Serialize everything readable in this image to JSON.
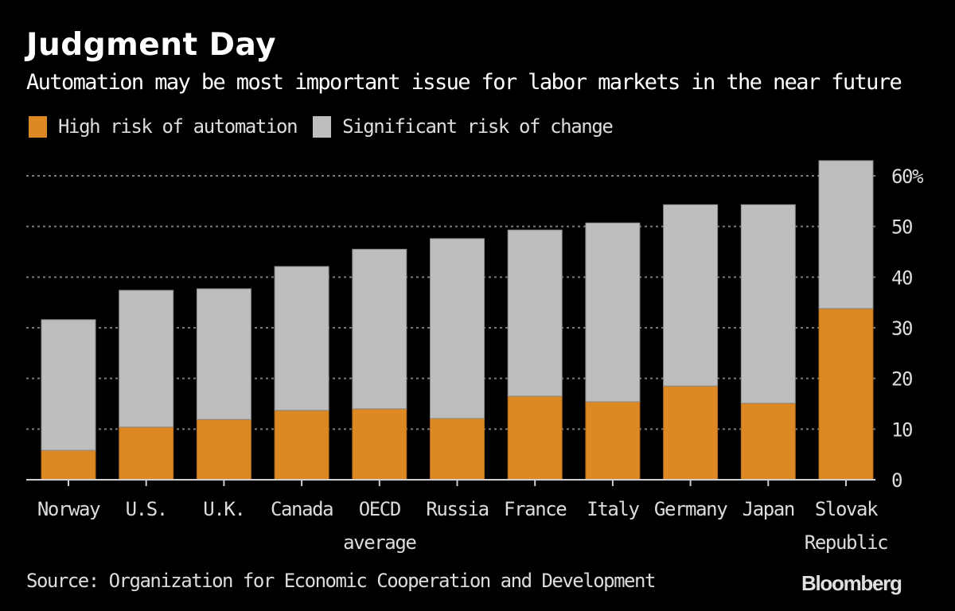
{
  "header": {
    "title": "Judgment Day",
    "subtitle": "Automation may be most important issue for labor markets in the near future"
  },
  "footer": {
    "source": "Source: Organization for Economic Cooperation and Development",
    "brand": "Bloomberg"
  },
  "chart_data": {
    "type": "bar",
    "stacked": true,
    "title": "Judgment Day",
    "subtitle": "Automation may be most important issue for labor markets in the near future",
    "xlabel": "",
    "ylabel": "",
    "ylim": [
      0,
      60
    ],
    "y_ticks": [
      0,
      10,
      20,
      30,
      40,
      50,
      60
    ],
    "y_tick_labels": [
      "0",
      "10",
      "20",
      "30",
      "40",
      "50",
      "60%"
    ],
    "y_axis_side": "right",
    "grid": true,
    "legend_position": "top-left",
    "categories": [
      [
        "Norway"
      ],
      [
        "U.S."
      ],
      [
        "U.K."
      ],
      [
        "Canada"
      ],
      [
        "OECD",
        "average"
      ],
      [
        "Russia"
      ],
      [
        "France"
      ],
      [
        "Italy"
      ],
      [
        "Germany"
      ],
      [
        "Japan"
      ],
      [
        "Slovak",
        "Republic"
      ]
    ],
    "series": [
      {
        "name": "High risk of automation",
        "color": "#dc8924",
        "values": [
          5.8,
          10.4,
          11.9,
          13.7,
          14.0,
          12.1,
          16.5,
          15.4,
          18.5,
          15.1,
          33.8
        ]
      },
      {
        "name": "Significant risk of change",
        "color": "#bebebe",
        "values": [
          25.8,
          27.0,
          25.8,
          28.4,
          31.5,
          35.5,
          32.8,
          35.3,
          35.8,
          39.2,
          29.2
        ]
      }
    ]
  }
}
